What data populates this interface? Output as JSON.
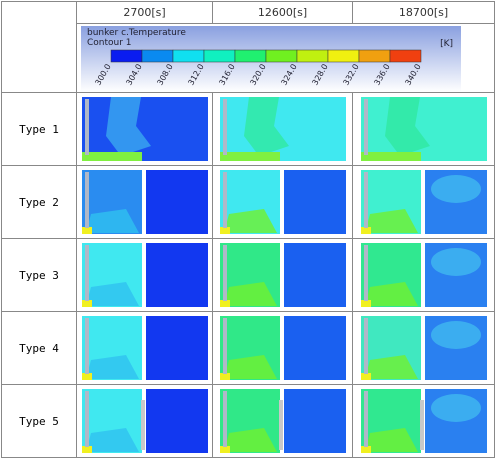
{
  "header": {
    "times": [
      "2700[s]",
      "12600[s]",
      "18700[s]"
    ]
  },
  "legend": {
    "title": "bunker c.Temperature",
    "subtitle": "Contour 1",
    "unit": "[K]",
    "ticks": [
      "300.0",
      "304.0",
      "308.0",
      "312.0",
      "316.0",
      "320.0",
      "324.0",
      "328.0",
      "332.0",
      "336.0",
      "340.0"
    ]
  },
  "rows": [
    "Type 1",
    "Type 2",
    "Type 3",
    "Type 4",
    "Type 5"
  ]
}
